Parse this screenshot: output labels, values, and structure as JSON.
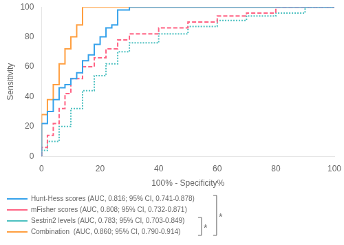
{
  "chart_data": {
    "type": "line",
    "xlabel": "100% - Specificity%",
    "ylabel": "Sensitivity",
    "xlim": [
      0,
      100
    ],
    "ylim": [
      0,
      100
    ],
    "xticks": [
      0,
      20,
      40,
      60,
      80,
      100
    ],
    "yticks": [
      0,
      20,
      40,
      60,
      80,
      100
    ],
    "grid": false,
    "legend": "bottom",
    "series": [
      {
        "name": "Hunt-Hess scores (AUC, 0.816; 95% CI, 0.741-0.878)",
        "line_style": "solid",
        "x": [
          0,
          0,
          2,
          2,
          4,
          4,
          6,
          6,
          8,
          8,
          10,
          10,
          12,
          12,
          14,
          14,
          16,
          16,
          18,
          18,
          20,
          20,
          22,
          22,
          24,
          24,
          26,
          26,
          30,
          30,
          100
        ],
        "values": [
          0,
          22,
          22,
          30,
          30,
          38,
          38,
          46,
          46,
          48,
          48,
          52,
          52,
          56,
          56,
          64,
          64,
          68,
          68,
          75,
          75,
          80,
          80,
          86,
          86,
          88,
          88,
          98,
          98,
          100,
          100
        ]
      },
      {
        "name": "mFisher scores (AUC, 0.808; 95% CI, 0.732-0.871)",
        "line_style": "dashed",
        "x": [
          0,
          0,
          2,
          2,
          4,
          4,
          6,
          6,
          8,
          8,
          10,
          10,
          14,
          14,
          18,
          18,
          22,
          22,
          26,
          26,
          30,
          30,
          40,
          40,
          50,
          50,
          60,
          60,
          70,
          70,
          80,
          80,
          100
        ],
        "values": [
          0,
          6,
          6,
          14,
          14,
          22,
          22,
          32,
          32,
          42,
          42,
          52,
          52,
          60,
          60,
          66,
          66,
          72,
          72,
          78,
          78,
          82,
          82,
          86,
          86,
          90,
          90,
          94,
          94,
          96,
          96,
          100,
          100
        ]
      },
      {
        "name": "Sestrin2 levels (AUC, 0.783; 95% CI, 0.703-0.849)",
        "line_style": "dotted",
        "x": [
          0,
          0,
          2,
          2,
          6,
          6,
          10,
          10,
          14,
          14,
          18,
          18,
          22,
          22,
          26,
          26,
          30,
          30,
          40,
          40,
          50,
          50,
          60,
          60,
          70,
          70,
          80,
          80,
          90,
          90,
          100
        ],
        "values": [
          0,
          4,
          4,
          10,
          10,
          20,
          20,
          32,
          32,
          44,
          44,
          54,
          54,
          62,
          62,
          70,
          70,
          76,
          76,
          82,
          82,
          87,
          87,
          91,
          91,
          94,
          94,
          96,
          96,
          100,
          100
        ]
      },
      {
        "name": "Combination  (AUC, 0.860; 95% CI, 0.790-0.914)",
        "line_style": "solid",
        "x": [
          0,
          0,
          2,
          2,
          4,
          4,
          6,
          6,
          8,
          8,
          10,
          10,
          12,
          12,
          14,
          14,
          18,
          18,
          22,
          22,
          26,
          26,
          100
        ],
        "values": [
          0,
          28,
          28,
          38,
          38,
          48,
          48,
          62,
          62,
          72,
          72,
          80,
          80,
          88,
          88,
          100,
          100,
          100,
          100,
          100,
          100,
          100,
          100
        ]
      }
    ],
    "annotations": [
      {
        "text": "*",
        "series": [
          "Sestrin2 levels (AUC, 0.783; 95% CI, 0.703-0.849)",
          "Combination  (AUC, 0.860; 95% CI, 0.790-0.914)"
        ]
      },
      {
        "text": "*",
        "series": [
          "Hunt-Hess scores (AUC, 0.816; 95% CI, 0.741-0.878)",
          "mFisher scores (AUC, 0.808; 95% CI, 0.732-0.871)",
          "Sestrin2 levels (AUC, 0.783; 95% CI, 0.703-0.849)",
          "Combination  (AUC, 0.860; 95% CI, 0.790-0.914)"
        ]
      }
    ]
  }
}
